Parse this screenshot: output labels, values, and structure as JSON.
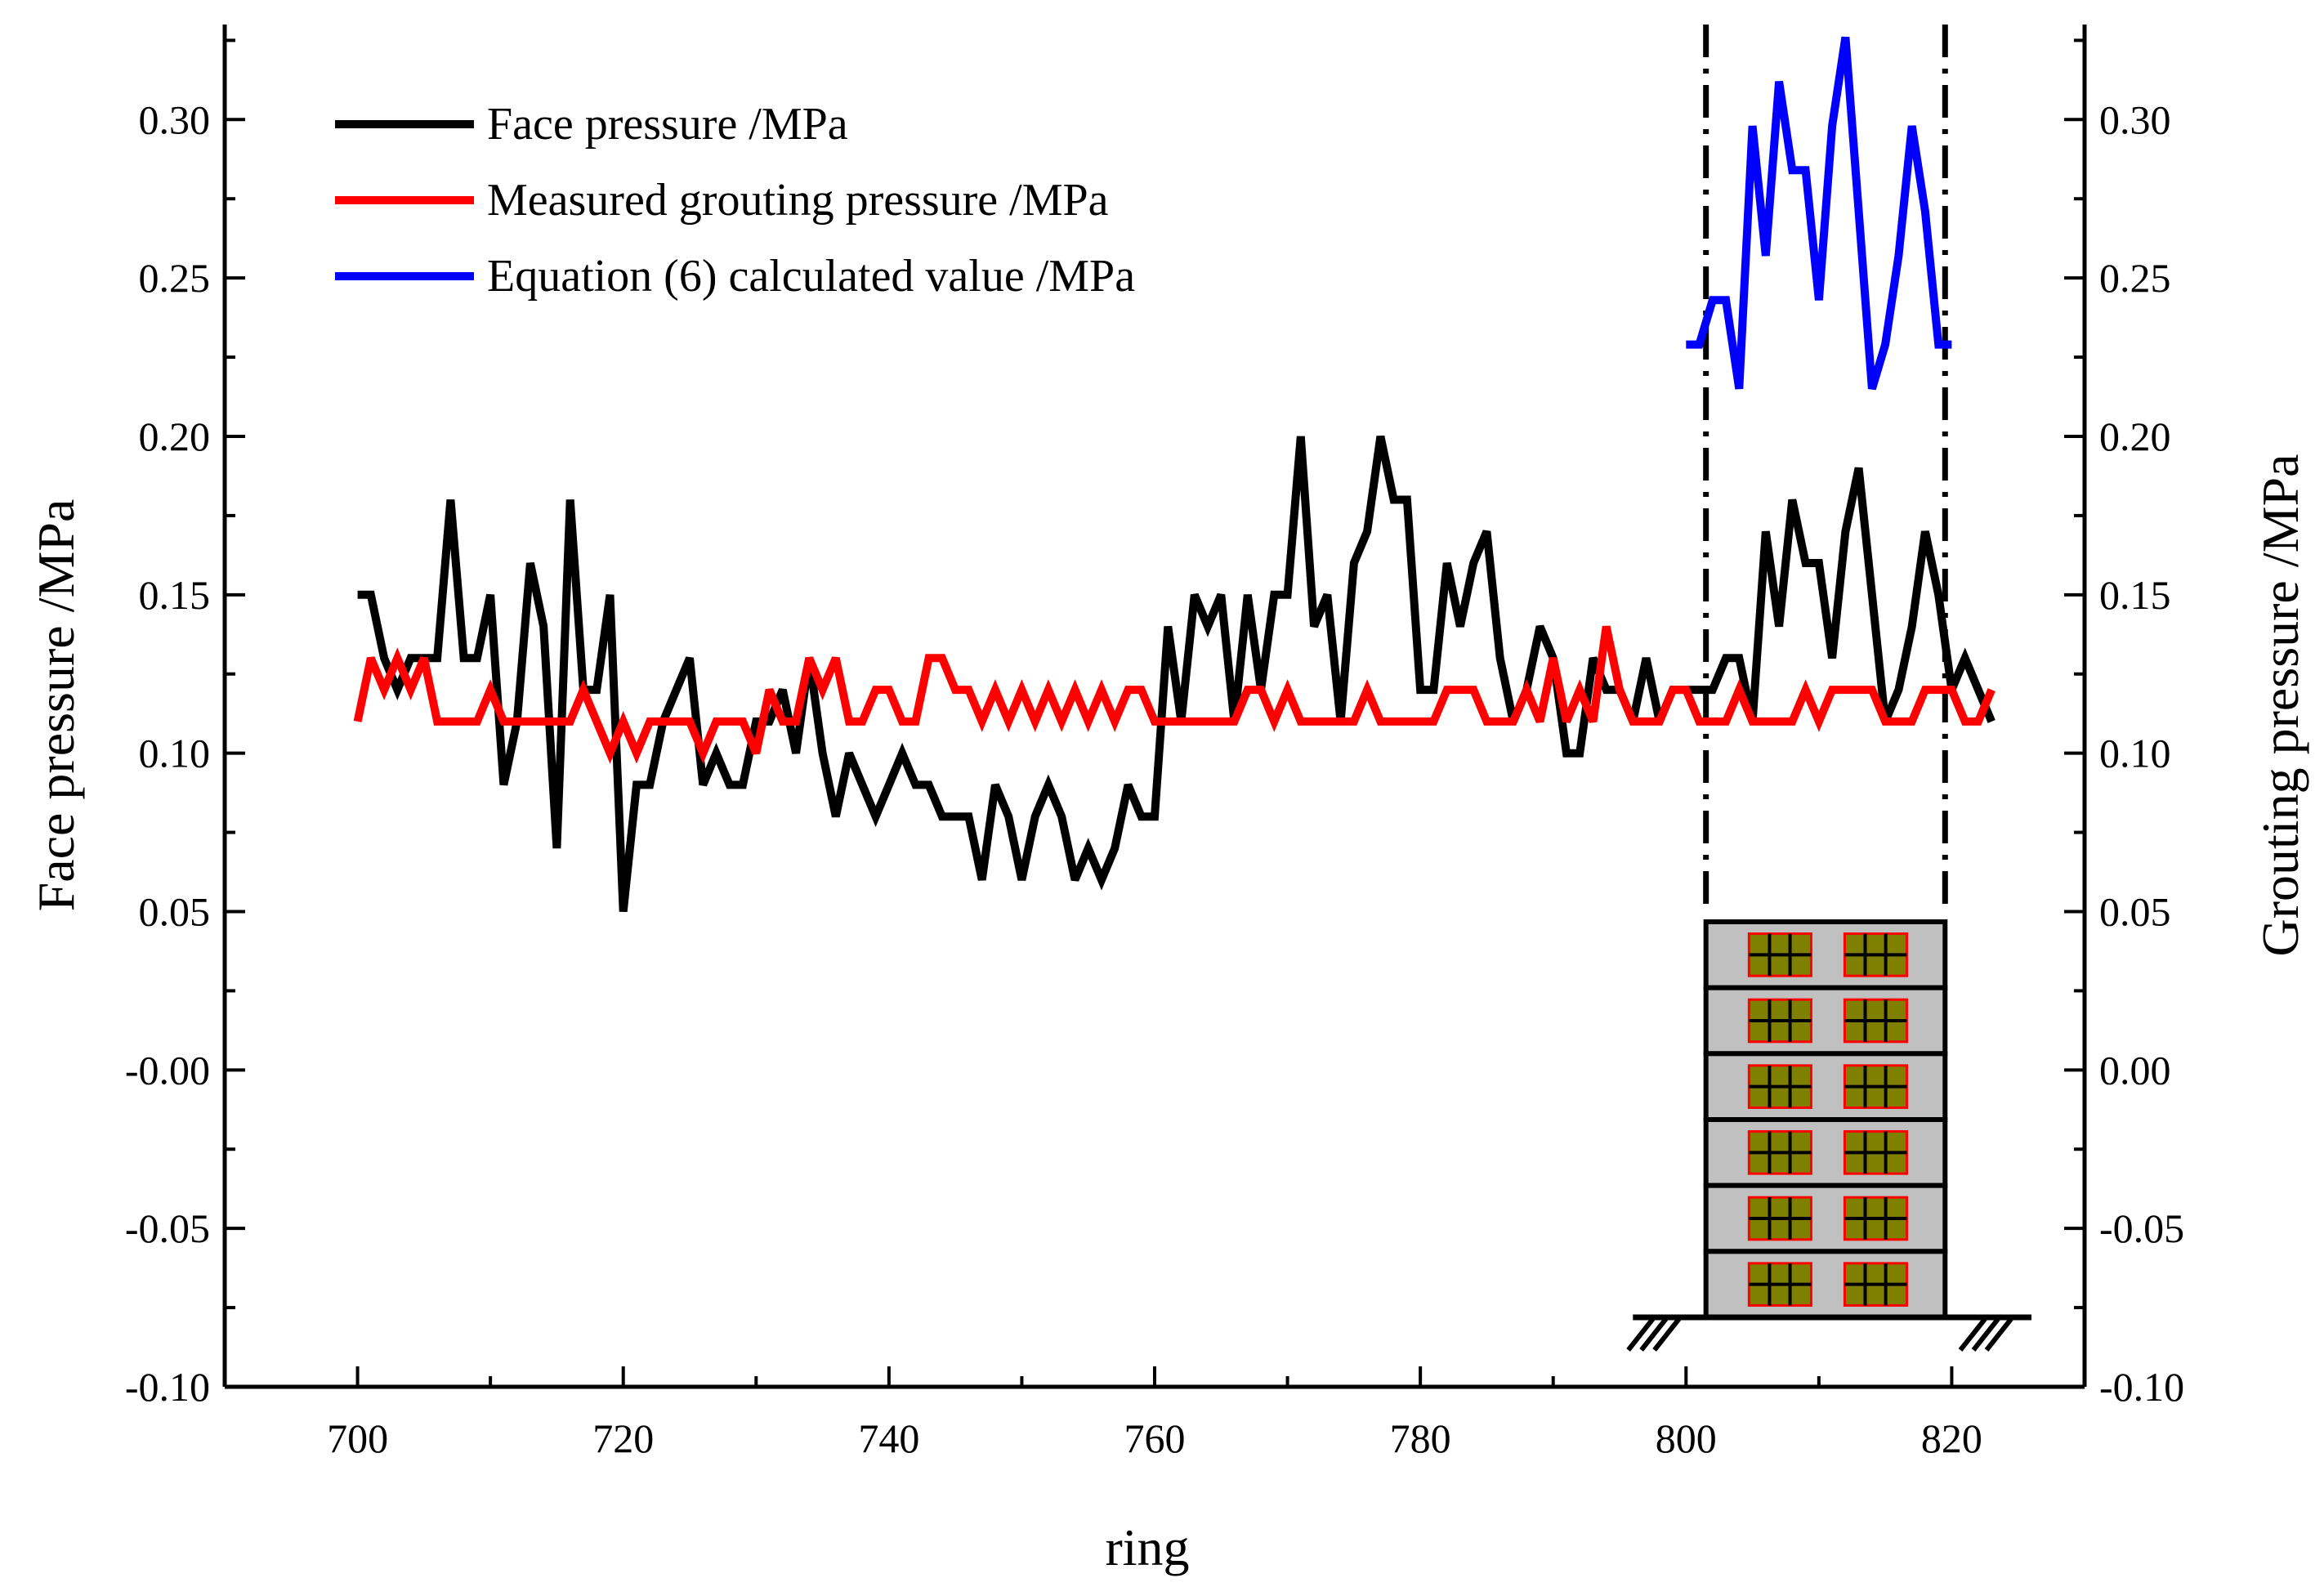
{
  "chart_data": {
    "type": "line",
    "xlabel": "ring",
    "ylabel_left": "Face pressure /MPa",
    "ylabel_right": "Grouting pressure /MPa",
    "xlim": [
      690,
      830
    ],
    "ylim": [
      -0.1,
      0.33
    ],
    "x_ticks": [
      "700",
      "720",
      "740",
      "760",
      "780",
      "800",
      "820"
    ],
    "x_tick_values": [
      700,
      720,
      740,
      760,
      780,
      800,
      820
    ],
    "y_ticks": [
      "-0.10",
      "-0.05",
      "-0.00",
      "0.05",
      "0.10",
      "0.15",
      "0.20",
      "0.25",
      "0.30"
    ],
    "y_ticks_right": [
      "-0.10",
      "-0.05",
      "0.00",
      "0.05",
      "0.10",
      "0.15",
      "0.20",
      "0.25",
      "0.30"
    ],
    "y_tick_values": [
      -0.1,
      -0.05,
      0.0,
      0.05,
      0.1,
      0.15,
      0.2,
      0.25,
      0.3
    ],
    "vertical_markers": [
      801.5,
      819.5
    ],
    "series": [
      {
        "name": "Face pressure /MPa",
        "color": "#000000",
        "x": [
          700,
          701,
          702,
          703,
          704,
          705,
          706,
          707,
          708,
          709,
          710,
          711,
          712,
          713,
          714,
          715,
          716,
          717,
          718,
          719,
          720,
          721,
          722,
          723,
          724,
          725,
          726,
          727,
          728,
          729,
          730,
          731,
          732,
          733,
          734,
          735,
          736,
          737,
          738,
          739,
          740,
          741,
          742,
          743,
          744,
          745,
          746,
          747,
          748,
          749,
          750,
          751,
          752,
          753,
          754,
          755,
          756,
          757,
          758,
          759,
          760,
          761,
          762,
          763,
          764,
          765,
          766,
          767,
          768,
          769,
          770,
          771,
          772,
          773,
          774,
          775,
          776,
          777,
          778,
          779,
          780,
          781,
          782,
          783,
          784,
          785,
          786,
          787,
          788,
          789,
          790,
          791,
          792,
          793,
          794,
          795,
          796,
          797,
          798,
          799,
          800,
          801,
          802,
          803,
          804,
          805,
          806,
          807,
          808,
          809,
          810,
          811,
          812,
          813,
          814,
          815,
          816,
          817,
          818,
          819,
          820,
          821,
          822,
          823
        ],
        "y": [
          0.15,
          0.15,
          0.13,
          0.12,
          0.13,
          0.13,
          0.13,
          0.18,
          0.13,
          0.13,
          0.15,
          0.09,
          0.11,
          0.16,
          0.14,
          0.07,
          0.18,
          0.12,
          0.12,
          0.15,
          0.05,
          0.09,
          0.09,
          0.11,
          0.12,
          0.13,
          0.09,
          0.1,
          0.09,
          0.09,
          0.11,
          0.11,
          0.12,
          0.1,
          0.13,
          0.1,
          0.08,
          0.1,
          0.09,
          0.08,
          0.09,
          0.1,
          0.09,
          0.09,
          0.08,
          0.08,
          0.08,
          0.06,
          0.09,
          0.08,
          0.06,
          0.08,
          0.09,
          0.08,
          0.06,
          0.07,
          0.06,
          0.07,
          0.09,
          0.08,
          0.08,
          0.14,
          0.11,
          0.15,
          0.14,
          0.15,
          0.11,
          0.15,
          0.12,
          0.15,
          0.15,
          0.2,
          0.14,
          0.15,
          0.11,
          0.16,
          0.17,
          0.2,
          0.18,
          0.18,
          0.12,
          0.12,
          0.16,
          0.14,
          0.16,
          0.17,
          0.13,
          0.11,
          0.12,
          0.14,
          0.13,
          0.1,
          0.1,
          0.13,
          0.12,
          0.12,
          0.11,
          0.13,
          0.11,
          0.12,
          0.12,
          0.12,
          0.12,
          0.13,
          0.13,
          0.11,
          0.17,
          0.14,
          0.18,
          0.16,
          0.16,
          0.13,
          0.17,
          0.19,
          0.15,
          0.11,
          0.12,
          0.14,
          0.17,
          0.15,
          0.12,
          0.13,
          0.12,
          0.11
        ]
      },
      {
        "name": "Measured grouting pressure /MPa",
        "color": "#ff0000",
        "x": [
          700,
          701,
          702,
          703,
          704,
          705,
          706,
          707,
          708,
          709,
          710,
          711,
          712,
          713,
          714,
          715,
          716,
          717,
          718,
          719,
          720,
          721,
          722,
          723,
          724,
          725,
          726,
          727,
          728,
          729,
          730,
          731,
          732,
          733,
          734,
          735,
          736,
          737,
          738,
          739,
          740,
          741,
          742,
          743,
          744,
          745,
          746,
          747,
          748,
          749,
          750,
          751,
          752,
          753,
          754,
          755,
          756,
          757,
          758,
          759,
          760,
          761,
          762,
          763,
          764,
          765,
          766,
          767,
          768,
          769,
          770,
          771,
          772,
          773,
          774,
          775,
          776,
          777,
          778,
          779,
          780,
          781,
          782,
          783,
          784,
          785,
          786,
          787,
          788,
          789,
          790,
          791,
          792,
          793,
          794,
          795,
          796,
          797,
          798,
          799,
          800,
          801,
          802,
          803,
          804,
          805,
          806,
          807,
          808,
          809,
          810,
          811,
          812,
          813,
          814,
          815,
          816,
          817,
          818,
          819,
          820,
          821,
          822,
          823
        ],
        "y": [
          0.11,
          0.13,
          0.12,
          0.13,
          0.12,
          0.13,
          0.11,
          0.11,
          0.11,
          0.11,
          0.12,
          0.11,
          0.11,
          0.11,
          0.11,
          0.11,
          0.11,
          0.12,
          0.11,
          0.1,
          0.11,
          0.1,
          0.11,
          0.11,
          0.11,
          0.11,
          0.1,
          0.11,
          0.11,
          0.11,
          0.1,
          0.12,
          0.11,
          0.11,
          0.13,
          0.12,
          0.13,
          0.11,
          0.11,
          0.12,
          0.12,
          0.11,
          0.11,
          0.13,
          0.13,
          0.12,
          0.12,
          0.11,
          0.12,
          0.11,
          0.12,
          0.11,
          0.12,
          0.11,
          0.12,
          0.11,
          0.12,
          0.11,
          0.12,
          0.12,
          0.11,
          0.11,
          0.11,
          0.11,
          0.11,
          0.11,
          0.11,
          0.12,
          0.12,
          0.11,
          0.12,
          0.11,
          0.11,
          0.11,
          0.11,
          0.11,
          0.12,
          0.11,
          0.11,
          0.11,
          0.11,
          0.11,
          0.12,
          0.12,
          0.12,
          0.11,
          0.11,
          0.11,
          0.12,
          0.11,
          0.13,
          0.11,
          0.12,
          0.11,
          0.14,
          0.12,
          0.11,
          0.11,
          0.11,
          0.12,
          0.12,
          0.11,
          0.11,
          0.11,
          0.12,
          0.11,
          0.11,
          0.11,
          0.11,
          0.12,
          0.11,
          0.12,
          0.12,
          0.12,
          0.12,
          0.11,
          0.11,
          0.11,
          0.12,
          0.12,
          0.12,
          0.11,
          0.11,
          0.12
        ]
      },
      {
        "name": "Equation (6) calculated value /MPa",
        "color": "#0000ff",
        "x": [
          800,
          801,
          802,
          803,
          804,
          805,
          806,
          807,
          808,
          809,
          810,
          811,
          812,
          813,
          814,
          815,
          816,
          817,
          818,
          819,
          820
        ],
        "y": [
          0.229,
          0.229,
          0.243,
          0.243,
          0.215,
          0.298,
          0.257,
          0.312,
          0.284,
          0.284,
          0.243,
          0.298,
          0.326,
          0.271,
          0.215,
          0.229,
          0.257,
          0.298,
          0.271,
          0.229,
          0.229
        ]
      }
    ]
  }
}
